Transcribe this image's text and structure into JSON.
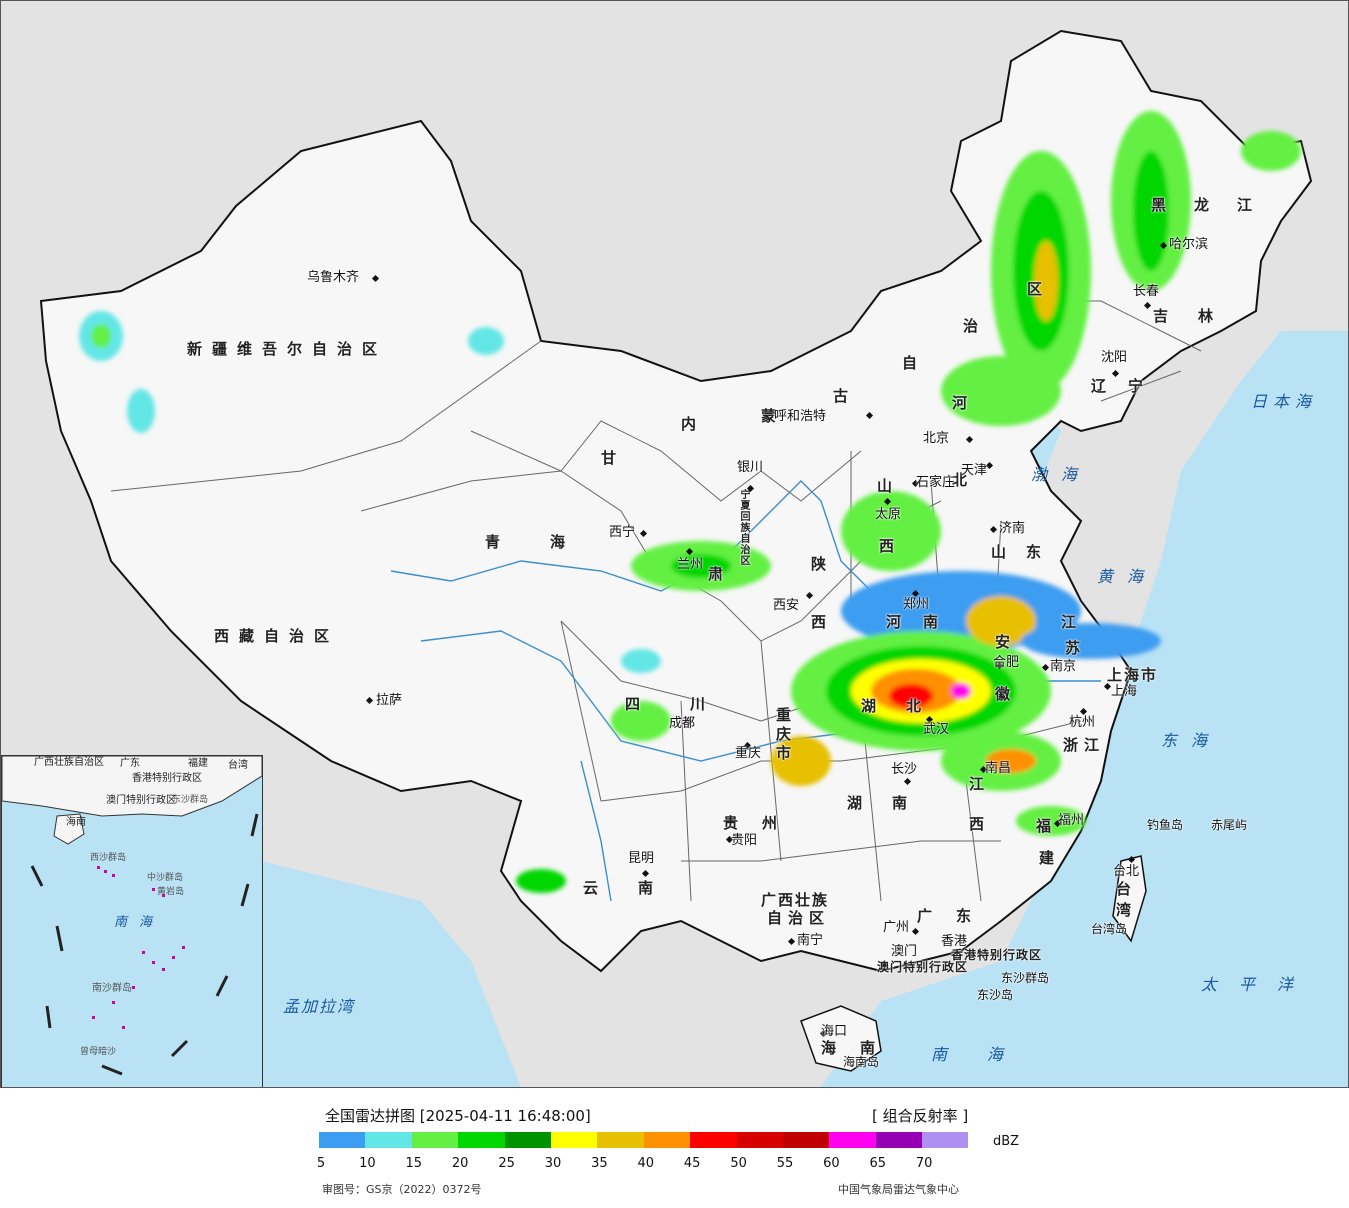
{
  "legend": {
    "title": "全国雷达拼图 [2025-04-11 16:48:00]",
    "product": "[ 组合反射率 ]",
    "unit": "dBZ",
    "colors": [
      "#3d9df0",
      "#63e6e6",
      "#63f042",
      "#00d700",
      "#009300",
      "#ffff00",
      "#e7c000",
      "#ff9000",
      "#ff0000",
      "#d60000",
      "#c00000",
      "#ff00f0",
      "#9600b4",
      "#ad90f0"
    ],
    "ticks": [
      "5",
      "10",
      "15",
      "20",
      "25",
      "30",
      "35",
      "40",
      "45",
      "50",
      "55",
      "60",
      "65",
      "70"
    ],
    "approval": "审图号：GS京（2022）0372号",
    "source": "中国气象局雷达气象中心"
  },
  "regions": {
    "xinjiang": "新疆维吾尔自治区",
    "xizang": "西藏自治区",
    "qinghai": "青海",
    "gansu": "甘",
    "gansu2": "肃",
    "neimenggu_nei": "内",
    "neimenggu_meng": "蒙",
    "neimenggu_gu": "古",
    "neimenggu_zi": "自",
    "neimenggu_zhi": "治",
    "neimenggu_qu": "区",
    "heilongjiang": "黑龙江",
    "jilin": "吉林",
    "liaoning": "辽宁",
    "hebei": "河北",
    "shanxi_shan": "山",
    "shanxi_xi": "西",
    "shandong": "山东",
    "shaanxi_shan": "陕",
    "shaanxi_xi": "西",
    "henan": "河南",
    "jiangsu_jiang": "江",
    "jiangsu_su": "苏",
    "anhui_an": "安",
    "anhui_hui": "徽",
    "sichuan": "四川",
    "chongqing": "重庆市",
    "hubei": "湖北",
    "hunan": "湖南",
    "jiangxi_jiang": "江",
    "jiangxi_xi": "西",
    "zhejiang": "浙江",
    "fujian_fu": "福",
    "fujian_jian": "建",
    "guizhou": "贵州",
    "yunnan": "云南",
    "guangxi1": "广西壮族",
    "guangxi2": "自治区",
    "guangdong": "广东",
    "hainan": "海南",
    "ningxia": "宁夏回族自治区",
    "shanghai": "上海市",
    "taiwan": "台湾",
    "hk": "香港特别行政区",
    "macau": "澳门特别行政区"
  },
  "cities": {
    "urumqi": "乌鲁木齐",
    "lhasa": "拉萨",
    "xining": "西宁",
    "lanzhou": "兰州",
    "yinchuan": "银川",
    "huhehaote": "呼和浩特",
    "beijing": "北京",
    "tianjin": "天津",
    "shijiazhuang": "石家庄",
    "taiyuan": "太原",
    "jinan": "济南",
    "xian": "西安",
    "zhengzhou": "郑州",
    "hefei": "合肥",
    "nanjing": "南京",
    "shanghai": "上海",
    "hangzhou": "杭州",
    "wuhan": "武汉",
    "changsha": "长沙",
    "nanchang": "南昌",
    "fuzhou": "福州",
    "taibei": "台北",
    "chengdu": "成都",
    "chongqing": "重庆",
    "guiyang": "贵阳",
    "kunming": "昆明",
    "nanning": "南宁",
    "guangzhou": "广州",
    "xianggang": "香港",
    "aomen": "澳门",
    "haikou": "海口",
    "haerbin": "哈尔滨",
    "changchun": "长春",
    "shenyang": "沈阳"
  },
  "seas": {
    "riben": "日本海",
    "bohai": "渤海",
    "huanghai": "黄海",
    "donghai": "东海",
    "nanhai": "南海",
    "taipingyang": "太平洋",
    "mengjiala": "孟加拉湾"
  },
  "islands": {
    "diaoyu": "钓鱼岛",
    "chiwei": "赤尾屿",
    "dongsha_qundao": "东沙群岛",
    "dongsha_dao": "东沙岛",
    "hainandao": "海南岛",
    "taiwandao": "台湾岛"
  },
  "inset": {
    "guangxi": "广西壮族自治区",
    "guangdong": "广东",
    "fujian": "福建",
    "taiwan": "台湾",
    "hainan": "海南",
    "hk": "香港特别行政区",
    "macau": "澳门特别行政区",
    "dongsha": "东沙群岛",
    "xisha": "西沙群岛",
    "zhongsha": "中沙群岛",
    "huangyan": "黄岩岛",
    "nanhai": "南海",
    "nansha": "南沙群岛",
    "zengmu": "曾母暗沙"
  }
}
